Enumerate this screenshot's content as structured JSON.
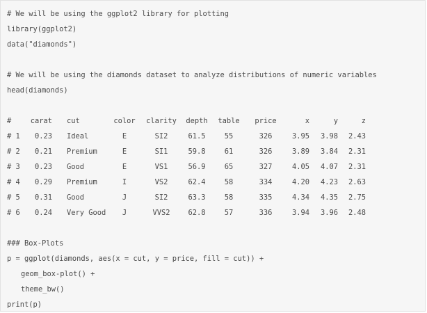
{
  "code": {
    "line1": "# We will be using the ggplot2 library for plotting",
    "line2": "library(ggplot2)",
    "line3": "data(\"diamonds\")",
    "line4": "# We will be using the diamonds dataset to analyze distributions of numeric variables",
    "line5": "head(diamonds)",
    "line6": "### Box-Plots",
    "line7": "p = ggplot(diamonds, aes(x = cut, y = price, fill = cut)) +",
    "line8": "geom_box-plot() +",
    "line9": "theme_bw()",
    "line10": "print(p)"
  },
  "table": {
    "headers": [
      "#",
      "carat",
      "cut",
      "color",
      "clarity",
      "depth",
      "table",
      "price",
      "x",
      "y",
      "z"
    ],
    "rows": [
      [
        "# 1",
        "0.23",
        "Ideal",
        "E",
        "SI2",
        "61.5",
        "55",
        "326",
        "3.95",
        "3.98",
        "2.43"
      ],
      [
        "# 2",
        "0.21",
        "Premium",
        "E",
        "SI1",
        "59.8",
        "61",
        "326",
        "3.89",
        "3.84",
        "2.31"
      ],
      [
        "# 3",
        "0.23",
        "Good",
        "E",
        "VS1",
        "56.9",
        "65",
        "327",
        "4.05",
        "4.07",
        "2.31"
      ],
      [
        "# 4",
        "0.29",
        "Premium",
        "I",
        "VS2",
        "62.4",
        "58",
        "334",
        "4.20",
        "4.23",
        "2.63"
      ],
      [
        "# 5",
        "0.31",
        "Good",
        "J",
        "SI2",
        "63.3",
        "58",
        "335",
        "4.34",
        "4.35",
        "2.75"
      ],
      [
        "# 6",
        "0.24",
        "Very Good",
        "J",
        "VVS2",
        "62.8",
        "57",
        "336",
        "3.94",
        "3.96",
        "2.48"
      ]
    ]
  },
  "colors": {
    "background": "#f6f6f6",
    "text": "#4a4a4a",
    "border": "#e2e2e2"
  }
}
